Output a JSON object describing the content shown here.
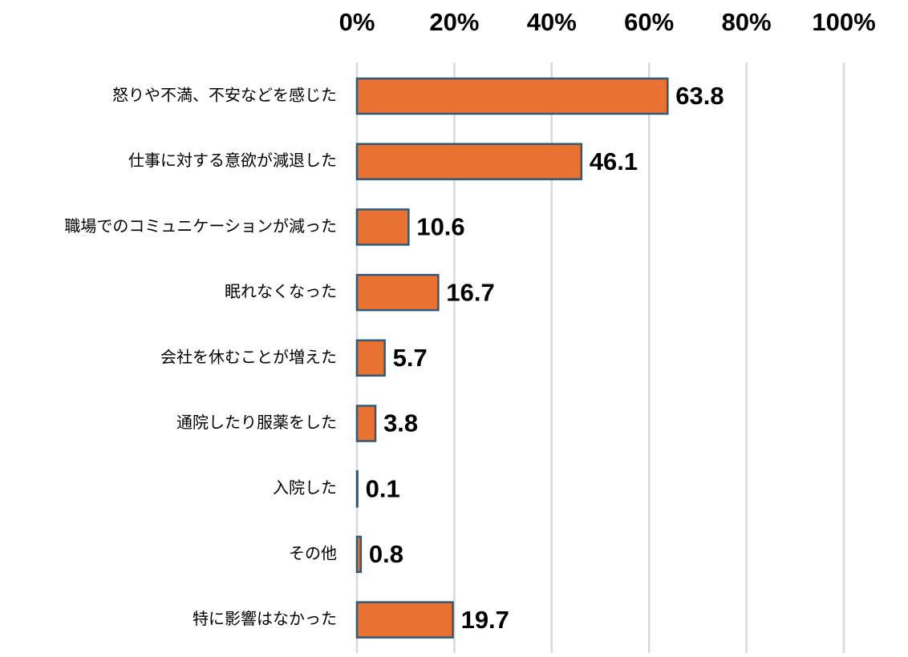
{
  "chart_data": {
    "type": "bar",
    "orientation": "horizontal",
    "categories": [
      "怒りや不満、不安などを感じた",
      "仕事に対する意欲が減退した",
      "職場でのコミュニケーションが減った",
      "眠れなくなった",
      "会社を休むことが増えた",
      "通院したり服薬をした",
      "入院した",
      "その他",
      "特に影響はなかった"
    ],
    "values": [
      63.8,
      46.1,
      10.6,
      16.7,
      5.7,
      3.8,
      0.1,
      0.8,
      19.7
    ],
    "color": "#e97132",
    "edgecolor": "#2e5a78",
    "xlim": [
      0,
      100
    ],
    "xticks": [
      {
        "value": 0,
        "label": "0%"
      },
      {
        "value": 20,
        "label": "20%"
      },
      {
        "value": 40,
        "label": "40%"
      },
      {
        "value": 60,
        "label": "60%"
      },
      {
        "value": 80,
        "label": "80%"
      },
      {
        "value": 100,
        "label": "100%"
      }
    ],
    "grid": true,
    "xaxis_position": "top",
    "data_labels": true
  }
}
